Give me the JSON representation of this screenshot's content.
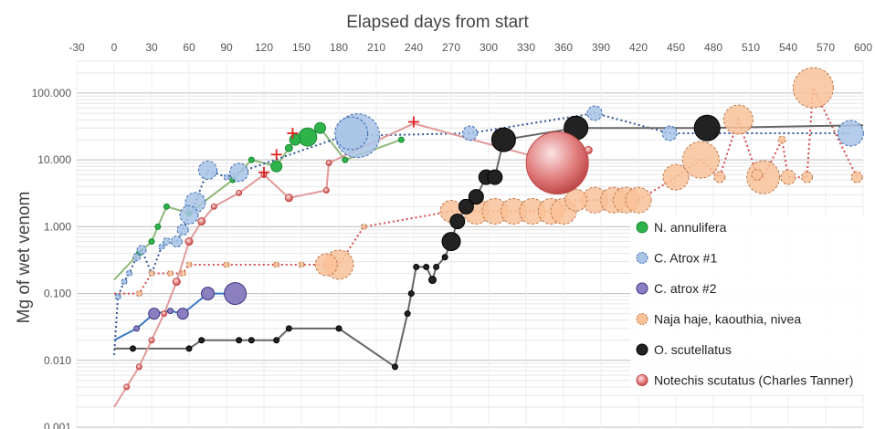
{
  "chart_data": {
    "type": "scatter",
    "title": "",
    "xlabel": "Elapsed days from start",
    "ylabel": "Mg of wet venom",
    "xlim": [
      -30,
      600
    ],
    "ylim": [
      0.001,
      300
    ],
    "yscale": "log",
    "x_axis_position": "top",
    "xticks": [
      -30,
      0,
      30,
      60,
      90,
      120,
      150,
      180,
      210,
      240,
      270,
      300,
      330,
      360,
      390,
      420,
      450,
      480,
      510,
      540,
      570,
      600
    ],
    "xtick_labels": [
      "-30",
      "0",
      "30",
      "60",
      "90",
      "120",
      "150",
      "180",
      "210",
      "240",
      "270",
      "300",
      "330",
      "360",
      "390",
      "420",
      "450",
      "480",
      "510",
      "540",
      "570",
      "600"
    ],
    "yticks": [
      0.001,
      0.01,
      0.1,
      1,
      10,
      100
    ],
    "ytick_labels": [
      "0.001",
      "0.010",
      "0.100",
      "1.000",
      "10.000",
      "100.000"
    ],
    "grid": "horizontal minor and major",
    "legend_position": "bottom-right",
    "series": [
      {
        "name": "N. annulifera",
        "color": "#2eb24a",
        "stroke": "#1c8a34",
        "line_color": "#8fb87a",
        "line_style": "solid",
        "marker": "circle",
        "points": [
          [
            0,
            0.16,
            0
          ],
          [
            20,
            0.4,
            3
          ],
          [
            30,
            0.6,
            3
          ],
          [
            35,
            1.0,
            3
          ],
          [
            42,
            2.0,
            3
          ],
          [
            60,
            1.6,
            3
          ],
          [
            95,
            5.0,
            3
          ],
          [
            110,
            10.0,
            3
          ],
          [
            130,
            8.0,
            6
          ],
          [
            140,
            15.0,
            4
          ],
          [
            145,
            20.0,
            6
          ],
          [
            155,
            22.0,
            10
          ],
          [
            165,
            30.0,
            6
          ],
          [
            185,
            10.0,
            3
          ],
          [
            230,
            20.0,
            3
          ]
        ]
      },
      {
        "name": "C. Atrox #1",
        "color": "#a8c4e6",
        "stroke": "#3c6bb0",
        "line_color": "#2f5597",
        "line_style": "dotted",
        "marker": "circle-dashed",
        "points": [
          [
            0,
            0.012,
            0
          ],
          [
            3,
            0.09,
            3
          ],
          [
            8,
            0.15,
            3
          ],
          [
            12,
            0.2,
            3
          ],
          [
            18,
            0.35,
            4
          ],
          [
            22,
            0.45,
            5
          ],
          [
            30,
            0.2,
            3
          ],
          [
            38,
            0.5,
            3
          ],
          [
            42,
            0.6,
            4
          ],
          [
            50,
            0.6,
            6
          ],
          [
            55,
            0.9,
            6
          ],
          [
            60,
            1.5,
            10
          ],
          [
            65,
            2.3,
            11
          ],
          [
            75,
            7.0,
            10
          ],
          [
            90,
            5.5,
            3
          ],
          [
            100,
            6.5,
            10
          ],
          [
            190,
            25.0,
            18
          ],
          [
            195,
            23.0,
            24
          ],
          [
            285,
            25.0,
            8
          ],
          [
            385,
            50.0,
            8
          ],
          [
            445,
            25.0,
            8
          ],
          [
            590,
            25.0,
            14
          ]
        ]
      },
      {
        "name": "C. atrox #2",
        "color": "#8c7fc0",
        "stroke": "#3d3486",
        "line_color": "#3a78c4",
        "line_style": "solid",
        "marker": "circle",
        "points": [
          [
            0,
            0.02,
            0
          ],
          [
            18,
            0.03,
            3
          ],
          [
            32,
            0.05,
            6
          ],
          [
            45,
            0.055,
            3
          ],
          [
            55,
            0.05,
            6
          ],
          [
            75,
            0.1,
            7
          ],
          [
            97,
            0.1,
            12
          ]
        ]
      },
      {
        "name": "Naja haje, kaouthia, nivea",
        "color": "#f9c299",
        "stroke": "#c0784a",
        "line_color": "#d94a4a",
        "line_style": "dotted",
        "marker": "circle-dashed",
        "points": [
          [
            0,
            0.1,
            0
          ],
          [
            20,
            0.1,
            3
          ],
          [
            30,
            0.2,
            3
          ],
          [
            45,
            0.2,
            3
          ],
          [
            55,
            0.2,
            3
          ],
          [
            60,
            0.27,
            3
          ],
          [
            90,
            0.27,
            3
          ],
          [
            130,
            0.27,
            3
          ],
          [
            150,
            0.27,
            3
          ],
          [
            170,
            0.27,
            12
          ],
          [
            180,
            0.27,
            16
          ],
          [
            200,
            1.0,
            3
          ],
          [
            270,
            1.7,
            12
          ],
          [
            290,
            1.7,
            14
          ],
          [
            305,
            1.7,
            14
          ],
          [
            320,
            1.7,
            14
          ],
          [
            335,
            1.7,
            14
          ],
          [
            350,
            1.7,
            14
          ],
          [
            360,
            1.7,
            14
          ],
          [
            370,
            2.5,
            12
          ],
          [
            385,
            2.5,
            14
          ],
          [
            400,
            2.5,
            14
          ],
          [
            410,
            2.5,
            14
          ],
          [
            420,
            2.5,
            14
          ],
          [
            470,
            10.0,
            20
          ],
          [
            450,
            5.5,
            14
          ],
          [
            485,
            5.5,
            6
          ],
          [
            500,
            40.0,
            16
          ],
          [
            515,
            6.0,
            6
          ],
          [
            520,
            5.5,
            18
          ],
          [
            535,
            20.0,
            4
          ],
          [
            540,
            5.5,
            8
          ],
          [
            555,
            5.5,
            6
          ],
          [
            560,
            120.0,
            22
          ],
          [
            595,
            5.5,
            6
          ]
        ]
      },
      {
        "name": "O. scutellatus",
        "color": "#222222",
        "stroke": "#000000",
        "line_color": "#666666",
        "line_style": "solid",
        "marker": "circle",
        "points": [
          [
            0,
            0.015,
            0
          ],
          [
            15,
            0.015,
            3
          ],
          [
            60,
            0.015,
            3
          ],
          [
            70,
            0.02,
            3
          ],
          [
            100,
            0.02,
            3
          ],
          [
            110,
            0.02,
            3
          ],
          [
            130,
            0.02,
            3
          ],
          [
            140,
            0.03,
            3
          ],
          [
            180,
            0.03,
            3
          ],
          [
            225,
            0.008,
            3
          ],
          [
            235,
            0.05,
            3
          ],
          [
            238,
            0.1,
            3
          ],
          [
            242,
            0.25,
            3
          ],
          [
            250,
            0.25,
            3
          ],
          [
            255,
            0.16,
            4
          ],
          [
            258,
            0.25,
            3
          ],
          [
            265,
            0.35,
            3
          ],
          [
            270,
            0.6,
            10
          ],
          [
            275,
            1.2,
            8
          ],
          [
            282,
            2.0,
            8
          ],
          [
            290,
            2.8,
            8
          ],
          [
            298,
            5.5,
            8
          ],
          [
            305,
            5.5,
            8
          ],
          [
            312,
            20.0,
            13
          ],
          [
            370,
            30.0,
            13
          ],
          [
            475,
            30.0,
            14
          ],
          [
            600,
            33.0,
            0
          ]
        ]
      },
      {
        "name": "Notechis scutatus (Charles Tanner)",
        "color": "#e88a8a",
        "stroke": "#c04848",
        "line_color": "#e09a9a",
        "line_style": "solid",
        "marker": "circle-gradient",
        "points": [
          [
            0,
            0.002,
            0
          ],
          [
            10,
            0.004,
            3
          ],
          [
            20,
            0.008,
            3
          ],
          [
            30,
            0.02,
            3
          ],
          [
            40,
            0.05,
            3
          ],
          [
            50,
            0.15,
            4
          ],
          [
            60,
            0.6,
            4
          ],
          [
            70,
            1.2,
            4
          ],
          [
            80,
            2.0,
            3
          ],
          [
            100,
            3.2,
            3
          ],
          [
            120,
            6.0,
            3
          ],
          [
            140,
            2.7,
            4
          ],
          [
            170,
            3.5,
            3
          ],
          [
            172,
            9.0,
            3
          ],
          [
            240,
            35.0,
            0
          ],
          [
            355,
            9.0,
            34
          ],
          [
            380,
            14.0,
            4
          ]
        ]
      },
      {
        "name": "Red cross markers",
        "hidden_in_legend": true,
        "color": "#e02020",
        "marker": "plus",
        "points": [
          [
            120,
            6.5
          ],
          [
            130,
            12.0
          ],
          [
            143,
            25.0
          ],
          [
            240,
            37.0
          ]
        ]
      }
    ],
    "legend": [
      {
        "name": "N. annulifera",
        "marker": "circle",
        "color": "#2eb24a",
        "stroke": "#1c8a34"
      },
      {
        "name": "C. Atrox #1",
        "marker": "circle-dashed",
        "color": "#a8c4e6",
        "stroke": "#3c6bb0"
      },
      {
        "name": "C. atrox #2",
        "marker": "circle",
        "color": "#8c7fc0",
        "stroke": "#3d3486"
      },
      {
        "name": "Naja haje, kaouthia, nivea",
        "marker": "circle-dashed",
        "color": "#f9c299",
        "stroke": "#c0784a"
      },
      {
        "name": "O. scutellatus",
        "marker": "circle",
        "color": "#222222",
        "stroke": "#000000"
      },
      {
        "name": "Notechis scutatus (Charles Tanner)",
        "marker": "circle-gradient",
        "color": "#e88a8a",
        "stroke": "#c04848"
      }
    ]
  }
}
